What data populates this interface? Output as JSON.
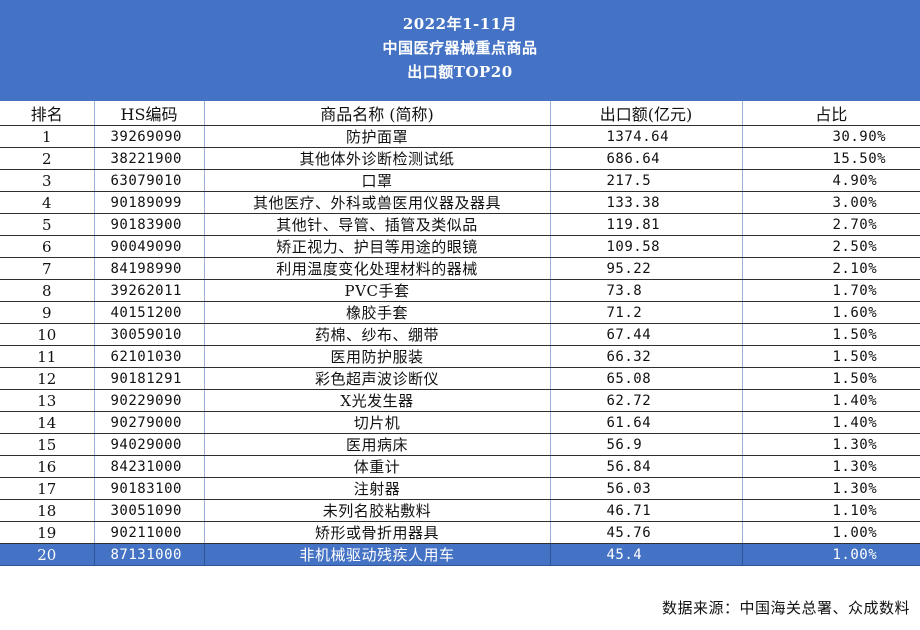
{
  "title_lines": [
    "2022年1-11月",
    "中国医疗器械重点商品",
    "出口额TOP20"
  ],
  "source": "数据来源：中国海关总署、众成数料",
  "chart_data": {
    "type": "table",
    "title": "2022年1-11月 中国医疗器械重点商品 出口额TOP20",
    "columns": [
      "排名",
      "HS编码",
      "商品名称 (简称)",
      "出口额(亿元)",
      "占比"
    ],
    "rows": [
      [
        "1",
        "39269090",
        "防护面罩",
        "1374.64",
        "30.90%"
      ],
      [
        "2",
        "38221900",
        "其他体外诊断检测试纸",
        "686.64",
        "15.50%"
      ],
      [
        "3",
        "63079010",
        "口罩",
        "217.5",
        "4.90%"
      ],
      [
        "4",
        "90189099",
        "其他医疗、外科或兽医用仪器及器具",
        "133.38",
        "3.00%"
      ],
      [
        "5",
        "90183900",
        "其他针、导管、插管及类似品",
        "119.81",
        "2.70%"
      ],
      [
        "6",
        "90049090",
        "矫正视力、护目等用途的眼镜",
        "109.58",
        "2.50%"
      ],
      [
        "7",
        "84198990",
        "利用温度变化处理材料的器械",
        "95.22",
        "2.10%"
      ],
      [
        "8",
        "39262011",
        "PVC手套",
        "73.8",
        "1.70%"
      ],
      [
        "9",
        "40151200",
        "橡胶手套",
        "71.2",
        "1.60%"
      ],
      [
        "10",
        "30059010",
        "药棉、纱布、绷带",
        "67.44",
        "1.50%"
      ],
      [
        "11",
        "62101030",
        "医用防护服装",
        "66.32",
        "1.50%"
      ],
      [
        "12",
        "90181291",
        "彩色超声波诊断仪",
        "65.08",
        "1.50%"
      ],
      [
        "13",
        "90229090",
        "X光发生器",
        "62.72",
        "1.40%"
      ],
      [
        "14",
        "90279000",
        "切片机",
        "61.64",
        "1.40%"
      ],
      [
        "15",
        "94029000",
        "医用病床",
        "56.9",
        "1.30%"
      ],
      [
        "16",
        "84231000",
        "体重计",
        "56.84",
        "1.30%"
      ],
      [
        "17",
        "90183100",
        "注射器",
        "56.03",
        "1.30%"
      ],
      [
        "18",
        "30051090",
        "未列名胶粘敷料",
        "46.71",
        "1.10%"
      ],
      [
        "19",
        "90211000",
        "矫形或骨折用器具",
        "45.76",
        "1.00%"
      ],
      [
        "20",
        "87131000",
        "非机械驱动残疾人用车",
        "45.4",
        "1.00%"
      ]
    ],
    "highlight_row": 20,
    "colors": {
      "header_bg": "#4472c4",
      "header_text": "#ffffff",
      "highlight_bg": "#4472c4"
    }
  }
}
